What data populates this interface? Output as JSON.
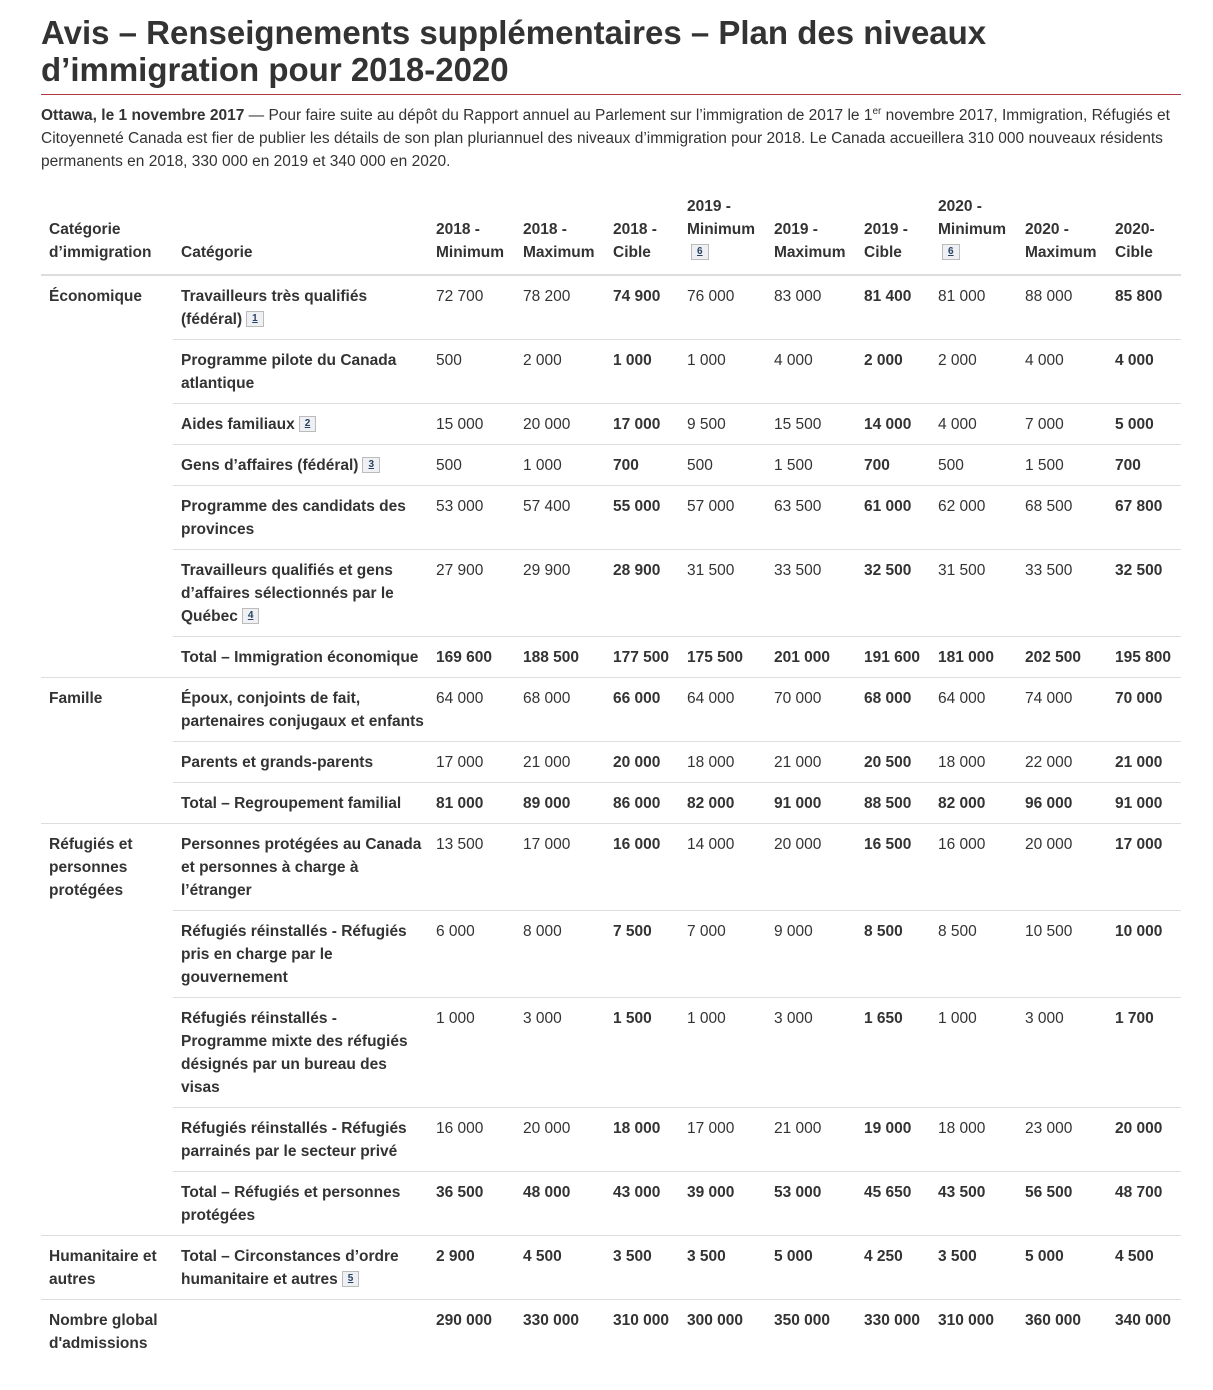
{
  "title": "Avis – Renseignements supplémentaires – Plan des niveaux d’immigration pour 2018-2020",
  "intro": {
    "dateline": "Ottawa, le 1 novembre 2017",
    "text_before_sup": " — Pour faire suite au dépôt du Rapport annuel au Parlement sur l’immigration de 2017 le 1",
    "sup": "er",
    "text_after_sup": " novembre 2017, Immigration, Réfugiés et Citoyenneté Canada est fier de publier les détails de son plan pluriannuel des niveaux d’immigration pour 2018. Le Canada accueillera 310 000 nouveaux résidents permanents en 2018, 330 000 en 2019 et 340 000 en 2020."
  },
  "table": {
    "headers": {
      "immigration_category": "Catégorie d’immigration",
      "category": "Catégorie",
      "c2018_min": "2018 - Minimum",
      "c2018_max": "2018 - Maximum",
      "c2018_target": "2018 - Cible",
      "c2019_min": "2019 - Minimum",
      "c2019_min_fn": "6",
      "c2019_max": "2019 - Maximum",
      "c2019_target": "2019 - Cible",
      "c2020_min": "2020 - Minimum",
      "c2020_min_fn": "6",
      "c2020_max": "2020 - Maximum",
      "c2020_target": "2020- Cible"
    },
    "groups": {
      "economic": "Économique",
      "family": "Famille",
      "refugees": "Réfugiés et personnes protégées",
      "humanitarian": "Humanitaire et autres",
      "overall": "Nombre global d'admissions"
    },
    "rows": [
      {
        "label": "Travailleurs très qualifiés (fédéral)",
        "fn": "1",
        "v": [
          "72 700",
          "78 200",
          "74 900",
          "76 000",
          "83 000",
          "81 400",
          "81 000",
          "88 000",
          "85 800"
        ]
      },
      {
        "label": "Programme pilote du Canada atlantique",
        "fn": "",
        "v": [
          "500",
          "2 000",
          "1 000",
          "1 000",
          "4 000",
          "2 000",
          "2 000",
          "4 000",
          "4 000"
        ]
      },
      {
        "label": "Aides familiaux",
        "fn": "2",
        "v": [
          "15 000",
          "20 000",
          "17 000",
          "9 500",
          "15 500",
          "14 000",
          "4 000",
          "7 000",
          "5 000"
        ]
      },
      {
        "label": "Gens d’affaires (fédéral)",
        "fn": "3",
        "v": [
          "500",
          "1 000",
          "700",
          "500",
          "1 500",
          "700",
          "500",
          "1 500",
          "700"
        ]
      },
      {
        "label": "Programme des candidats des provinces",
        "fn": "",
        "v": [
          "53 000",
          "57 400",
          "55 000",
          "57 000",
          "63 500",
          "61 000",
          "62 000",
          "68 500",
          "67 800"
        ]
      },
      {
        "label": "Travailleurs qualifiés et gens d’affaires sélectionnés par le Québec",
        "fn": "4",
        "v": [
          "27 900",
          "29 900",
          "28 900",
          "31 500",
          "33 500",
          "32 500",
          "31 500",
          "33 500",
          "32 500"
        ]
      },
      {
        "label": "Total – Immigration économique",
        "fn": "",
        "v": [
          "169 600",
          "188 500",
          "177 500",
          "175 500",
          "201 000",
          "191 600",
          "181 000",
          "202 500",
          "195 800"
        ]
      },
      {
        "label": "Époux, conjoints de fait, partenaires conjugaux et enfants",
        "fn": "",
        "v": [
          "64 000",
          "68 000",
          "66 000",
          "64 000",
          "70 000",
          "68 000",
          "64 000",
          "74 000",
          "70 000"
        ]
      },
      {
        "label": "Parents et grands-parents",
        "fn": "",
        "v": [
          "17 000",
          "21 000",
          "20 000",
          "18 000",
          "21 000",
          "20 500",
          "18 000",
          "22 000",
          "21 000"
        ]
      },
      {
        "label": "Total – Regroupement familial",
        "fn": "",
        "v": [
          "81 000",
          "89 000",
          "86 000",
          "82 000",
          "91 000",
          "88 500",
          "82 000",
          "96 000",
          "91 000"
        ]
      },
      {
        "label": "Personnes protégées au Canada et personnes à charge à l’étranger",
        "fn": "",
        "v": [
          "13 500",
          "17 000",
          "16 000",
          "14 000",
          "20 000",
          "16 500",
          "16 000",
          "20 000",
          "17 000"
        ]
      },
      {
        "label": "Réfugiés réinstallés - Réfugiés pris en charge par le gouvernement",
        "fn": "",
        "v": [
          "6 000",
          "8 000",
          "7 500",
          "7 000",
          "9 000",
          "8 500",
          "8 500",
          "10 500",
          "10 000"
        ]
      },
      {
        "label": "Réfugiés réinstallés - Programme mixte des réfugiés désignés par un bureau des visas",
        "fn": "",
        "v": [
          "1 000",
          "3 000",
          "1 500",
          "1 000",
          "3 000",
          "1 650",
          "1 000",
          "3 000",
          "1 700"
        ]
      },
      {
        "label": "Réfugiés réinstallés - Réfugiés parrainés par le secteur privé",
        "fn": "",
        "v": [
          "16 000",
          "20 000",
          "18 000",
          "17 000",
          "21 000",
          "19 000",
          "18 000",
          "23 000",
          "20 000"
        ]
      },
      {
        "label": "Total – Réfugiés et personnes protégées",
        "fn": "",
        "v": [
          "36 500",
          "48 000",
          "43 000",
          "39 000",
          "53 000",
          "45 650",
          "43 500",
          "56 500",
          "48 700"
        ]
      },
      {
        "label": "Total – Circonstances d’ordre humanitaire et autres",
        "fn": "5",
        "v": [
          "2 900",
          "4 500",
          "3 500",
          "3 500",
          "5 000",
          "4 250",
          "3 500",
          "5 000",
          "4 500"
        ]
      },
      {
        "label": "",
        "fn": "",
        "v": [
          "290 000",
          "330 000",
          "310 000",
          "300 000",
          "350 000",
          "330 000",
          "310 000",
          "360 000",
          "340 000"
        ]
      }
    ]
  }
}
